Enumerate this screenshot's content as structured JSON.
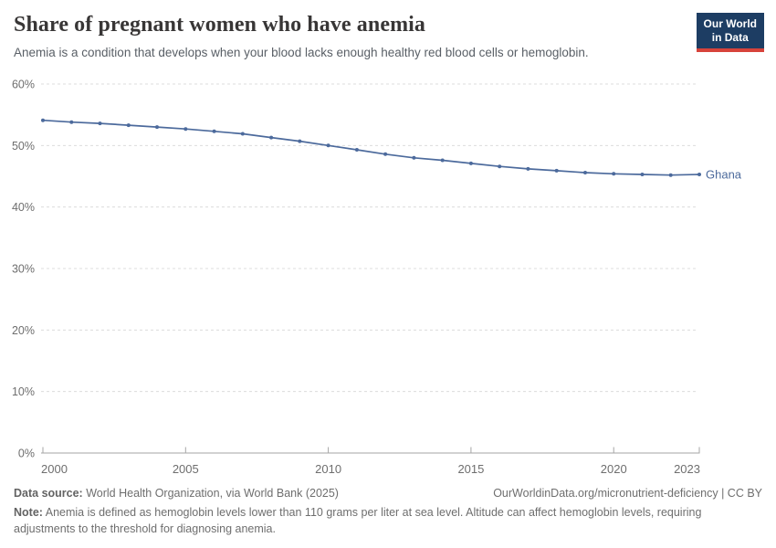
{
  "header": {
    "title": "Share of pregnant women who have anemia",
    "subtitle": "Anemia is a condition that develops when your blood lacks enough healthy red blood cells or hemoglobin.",
    "logo_line1": "Our World",
    "logo_line2": "in Data"
  },
  "chart_data": {
    "type": "line",
    "title": "Share of pregnant women who have anemia",
    "x": [
      2000,
      2001,
      2002,
      2003,
      2004,
      2005,
      2006,
      2007,
      2008,
      2009,
      2010,
      2011,
      2012,
      2013,
      2014,
      2015,
      2016,
      2017,
      2018,
      2019,
      2020,
      2021,
      2022,
      2023
    ],
    "series": [
      {
        "name": "Ghana",
        "color": "#4c6a9c",
        "values": [
          54.1,
          53.8,
          53.6,
          53.3,
          53.0,
          52.7,
          52.3,
          51.9,
          51.3,
          50.7,
          50.0,
          49.3,
          48.6,
          48.0,
          47.6,
          47.1,
          46.6,
          46.2,
          45.9,
          45.6,
          45.4,
          45.3,
          45.2,
          45.3
        ]
      }
    ],
    "xlabel": "",
    "ylabel": "",
    "ylim": [
      0,
      60
    ],
    "y_ticks": [
      0,
      10,
      20,
      30,
      40,
      50,
      60
    ],
    "y_tick_suffix": "%",
    "x_ticks": [
      2000,
      2005,
      2010,
      2015,
      2020,
      2023
    ],
    "grid": "horizontal-dashed",
    "legend_position": "end-of-line-label"
  },
  "colors": {
    "title": "#383636",
    "subtitle": "#595f66",
    "line": "#4c6a9c",
    "gridline": "#dcdcdc",
    "axis": "#a5a5a5",
    "tick_label": "#6e6e6e",
    "logo_bg": "#1d3d63",
    "logo_underline": "#d7433b",
    "footer_text": "#6e6e6e"
  },
  "footer": {
    "source_label": "Data source:",
    "source_text": " World Health Organization, via World Bank (2025)",
    "link": "OurWorldinData.org/micronutrient-deficiency | CC BY",
    "note_label": "Note:",
    "note_text": " Anemia is defined as hemoglobin levels lower than 110 grams per liter at sea level. Altitude can affect hemoglobin levels, requiring adjustments to the threshold for diagnosing anemia."
  }
}
